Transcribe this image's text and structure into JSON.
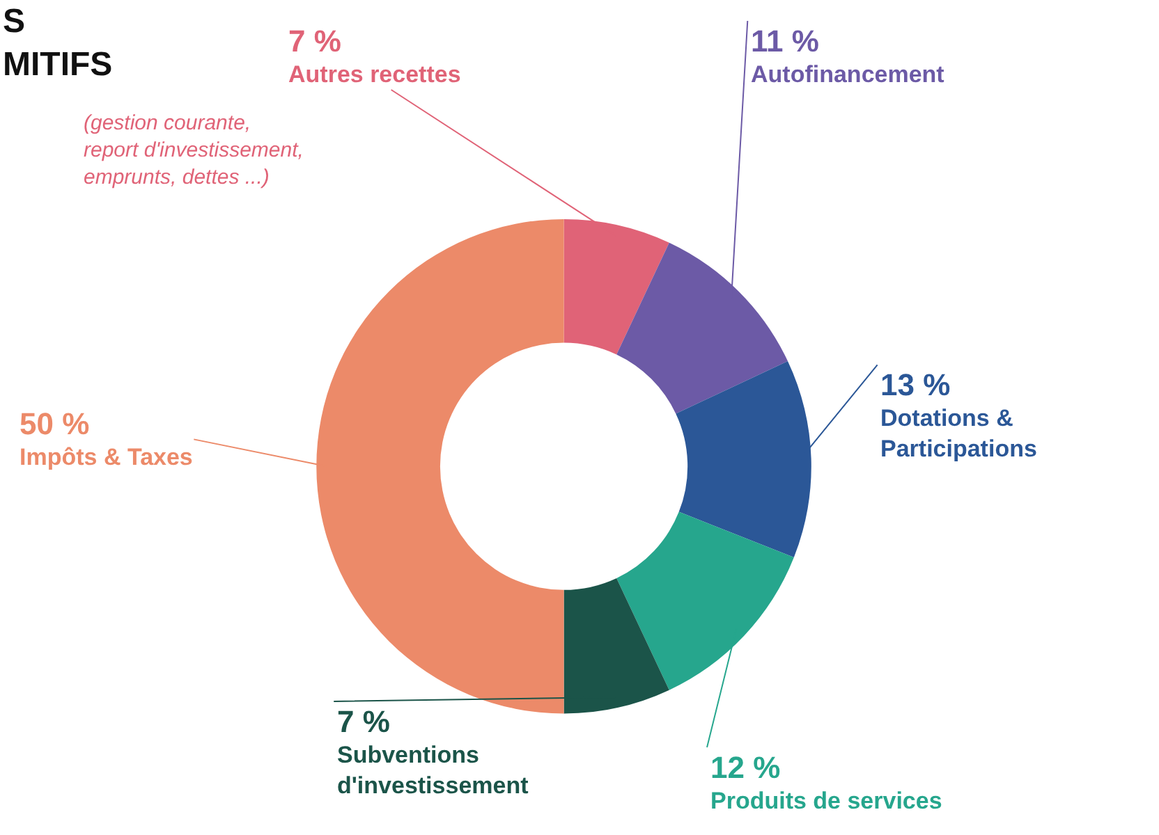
{
  "chart_data": {
    "type": "donut",
    "title": "S\nMITIFS",
    "categories": [
      "Autres recettes",
      "Autofinancement",
      "Dotations &\nParticipations",
      "Produits de services",
      "Subventions\nd'investissement",
      "Impôts & Taxes"
    ],
    "values": [
      7,
      11,
      13,
      12,
      7,
      50
    ],
    "value_labels": [
      "7 %",
      "11 %",
      "13 %",
      "12 %",
      "7 %",
      "50 %"
    ],
    "colors": [
      "#e06377",
      "#6c5aa6",
      "#2b5797",
      "#26a68d",
      "#1b5449",
      "#ec8a69"
    ],
    "annotations": [
      "(gestion courante,\nreport d'investissement,\nemprunts, dettes ...)"
    ],
    "legend": false
  }
}
